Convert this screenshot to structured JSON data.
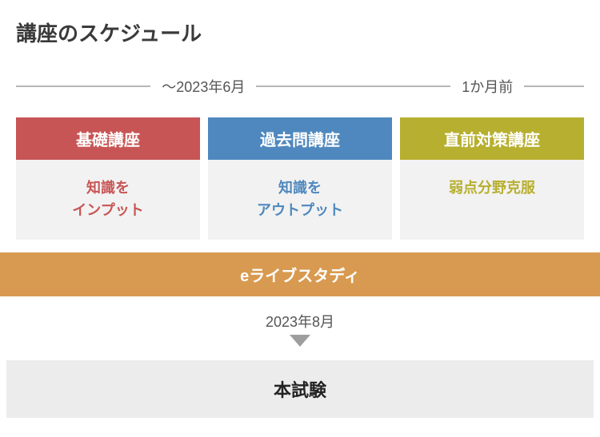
{
  "title": "講座のスケジュール",
  "timeline": {
    "left_label": "〜2023年6月",
    "right_label": "1か月前",
    "line_color": "#b7b7b7"
  },
  "courses": [
    {
      "head": "基礎講座",
      "body": "知識を\nインプット",
      "head_bg": "#c85555",
      "body_color": "#c85555"
    },
    {
      "head": "過去問講座",
      "body": "知識を\nアウトプット",
      "head_bg": "#4f88be",
      "body_color": "#4f88be"
    },
    {
      "head": "直前対策講座",
      "body": "弱点分野克服",
      "head_bg": "#b7af2f",
      "body_color": "#b7af2f"
    }
  ],
  "elive": {
    "label": "eライブスタディ",
    "bg": "#d89a50"
  },
  "exam_date_label": "2023年8月",
  "arrow_color": "#9e9e9e",
  "exam": {
    "label": "本試験",
    "bg": "#ececec"
  },
  "body_cell_bg": "#f2f2f2"
}
